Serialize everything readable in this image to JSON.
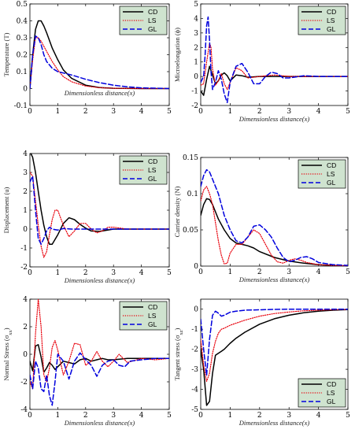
{
  "colors": {
    "CD": "#000000",
    "LS": "#e8000b",
    "GL": "#0000dd",
    "legend_bg": "#cfe3cf"
  },
  "chart_data": [
    {
      "type": "line",
      "xlabel": "Dimensionless distance(x)",
      "ylabel": "Temperature (T)",
      "xlim": [
        0,
        5
      ],
      "ylim": [
        -0.1,
        0.5
      ],
      "xticks": [
        "0",
        "1",
        "2",
        "3",
        "4",
        "5"
      ],
      "yticks": [
        "-0.1",
        "0",
        "0.1",
        "0.2",
        "0.3",
        "0.4",
        "0.5"
      ],
      "legend_position": "top-right",
      "series": [
        {
          "name": "CD",
          "x": [
            0,
            0.1,
            0.2,
            0.3,
            0.4,
            0.5,
            0.6,
            0.8,
            1.0,
            1.2,
            1.5,
            2.0,
            2.5,
            3.0,
            4.0,
            5.0
          ],
          "y": [
            0,
            0.2,
            0.35,
            0.4,
            0.4,
            0.37,
            0.33,
            0.24,
            0.17,
            0.11,
            0.06,
            0.02,
            0.006,
            0.002,
            0,
            0
          ]
        },
        {
          "name": "LS",
          "x": [
            0,
            0.1,
            0.2,
            0.3,
            0.4,
            0.5,
            0.6,
            0.8,
            1.0,
            1.2,
            1.5,
            2.0,
            2.5,
            3.0,
            4.0,
            5.0
          ],
          "y": [
            0,
            0.17,
            0.3,
            0.3,
            0.28,
            0.25,
            0.22,
            0.16,
            0.11,
            0.07,
            0.04,
            0.015,
            0.005,
            0.002,
            0,
            0
          ]
        },
        {
          "name": "GL",
          "x": [
            0,
            0.1,
            0.2,
            0.3,
            0.4,
            0.5,
            0.6,
            0.8,
            1.0,
            1.5,
            2.0,
            2.5,
            3.0,
            3.5,
            4.0,
            5.0
          ],
          "y": [
            0,
            0.2,
            0.31,
            0.3,
            0.26,
            0.2,
            0.16,
            0.12,
            0.1,
            0.08,
            0.055,
            0.035,
            0.02,
            0.01,
            0.004,
            0
          ]
        }
      ]
    },
    {
      "type": "line",
      "xlabel": "Dimensionless distance(x)",
      "ylabel": "Microelongation (ϕ)",
      "xlim": [
        0,
        5
      ],
      "ylim": [
        -2,
        5
      ],
      "xticks": [
        "0",
        "1",
        "2",
        "3",
        "4",
        "5"
      ],
      "yticks": [
        "-2",
        "-1",
        "0",
        "1",
        "2",
        "3",
        "4",
        "5"
      ],
      "legend_position": "top-right",
      "series": [
        {
          "name": "CD",
          "x": [
            0,
            0.1,
            0.2,
            0.3,
            0.4,
            0.5,
            0.6,
            0.7,
            0.8,
            0.9,
            1.0,
            1.2,
            1.4,
            1.6,
            2.0,
            3.0,
            4.0,
            5.0
          ],
          "y": [
            -1.0,
            -1.3,
            -0.2,
            0.7,
            0.1,
            -0.5,
            -0.3,
            0.1,
            0.25,
            0.05,
            -0.3,
            0.1,
            0.05,
            -0.05,
            0,
            0,
            0,
            0
          ]
        },
        {
          "name": "LS",
          "x": [
            0,
            0.1,
            0.2,
            0.3,
            0.35,
            0.4,
            0.5,
            0.6,
            0.7,
            0.8,
            0.9,
            1.0,
            1.2,
            1.4,
            1.6,
            2.0,
            2.5,
            3.0,
            4.0,
            5.0
          ],
          "y": [
            -0.6,
            -0.5,
            1.0,
            2.3,
            2.0,
            0.5,
            -0.6,
            -0.3,
            0.2,
            -0.5,
            -0.9,
            -0.4,
            0.6,
            0.4,
            -0.1,
            0,
            0.1,
            0,
            0,
            0
          ]
        },
        {
          "name": "GL",
          "x": [
            0,
            0.1,
            0.15,
            0.2,
            0.25,
            0.3,
            0.35,
            0.4,
            0.5,
            0.6,
            0.7,
            0.8,
            0.9,
            1.0,
            1.2,
            1.4,
            1.6,
            1.8,
            2.0,
            2.2,
            2.4,
            2.6,
            2.8,
            3.0,
            3.5,
            4.0,
            5.0
          ],
          "y": [
            -0.4,
            0.0,
            1.5,
            3.5,
            4.1,
            2.5,
            0.3,
            -0.9,
            -0.4,
            0.4,
            -0.2,
            -1.2,
            -1.8,
            -0.4,
            0.7,
            0.9,
            0.3,
            -0.5,
            -0.5,
            0,
            0.3,
            0.2,
            -0.1,
            -0.1,
            0.05,
            0,
            0
          ]
        }
      ]
    },
    {
      "type": "line",
      "xlabel": "Dimensionless distance(x)",
      "ylabel": "Displacement (u)",
      "xlim": [
        0,
        5
      ],
      "ylim": [
        -2,
        4
      ],
      "xticks": [
        "0",
        "1",
        "2",
        "3",
        "4",
        "5"
      ],
      "yticks": [
        "-2",
        "-1",
        "0",
        "1",
        "2",
        "3",
        "4"
      ],
      "legend_position": "top-right",
      "series": [
        {
          "name": "CD",
          "x": [
            0,
            0.1,
            0.2,
            0.3,
            0.4,
            0.5,
            0.6,
            0.7,
            0.8,
            1.0,
            1.2,
            1.4,
            1.6,
            1.8,
            2.0,
            2.2,
            2.5,
            3.0,
            3.5,
            4.0,
            5.0
          ],
          "y": [
            4.1,
            3.8,
            3.0,
            2.0,
            1.0,
            0.2,
            -0.4,
            -0.8,
            -0.8,
            -0.3,
            0.3,
            0.6,
            0.5,
            0.25,
            0.05,
            -0.1,
            -0.12,
            0,
            0,
            0,
            0
          ]
        },
        {
          "name": "LS",
          "x": [
            0,
            0.1,
            0.2,
            0.3,
            0.4,
            0.5,
            0.6,
            0.7,
            0.8,
            0.9,
            1.0,
            1.1,
            1.2,
            1.4,
            1.6,
            1.8,
            2.0,
            2.2,
            2.4,
            2.6,
            2.8,
            3.0,
            3.5,
            4.0,
            5.0
          ],
          "y": [
            3.0,
            2.8,
            1.5,
            0.2,
            -0.9,
            -1.5,
            -1.2,
            -0.3,
            0.5,
            1.0,
            1.0,
            0.6,
            0.2,
            -0.4,
            -0.1,
            0.3,
            0.3,
            0,
            -0.2,
            -0.1,
            0.1,
            0.1,
            0,
            0,
            0
          ]
        },
        {
          "name": "GL",
          "x": [
            0,
            0.1,
            0.2,
            0.3,
            0.4,
            0.5,
            0.6,
            0.7,
            0.8,
            1.0,
            1.2,
            1.5,
            2.0,
            3.0,
            4.0,
            5.0
          ],
          "y": [
            2.5,
            2.8,
            1.0,
            -0.5,
            -0.8,
            -0.5,
            -0.1,
            0.1,
            0.0,
            -0.05,
            0.03,
            0,
            0,
            0,
            0,
            0
          ]
        }
      ]
    },
    {
      "type": "line",
      "xlabel": "Dimensionless distance(x)",
      "ylabel": "Carrier density (N)",
      "xlim": [
        0,
        5
      ],
      "ylim": [
        0,
        0.15
      ],
      "xticks": [
        "0",
        "1",
        "2",
        "3",
        "4",
        "5"
      ],
      "yticks": [
        "0",
        "0.05",
        "0.1",
        "0.15"
      ],
      "legend_position": "top-right",
      "series": [
        {
          "name": "CD",
          "x": [
            0,
            0.1,
            0.2,
            0.3,
            0.4,
            0.5,
            0.6,
            0.8,
            1.0,
            1.2,
            1.4,
            1.6,
            1.8,
            2.0,
            2.5,
            3.0,
            3.5,
            4.0,
            4.5,
            5.0
          ],
          "y": [
            0.07,
            0.085,
            0.093,
            0.092,
            0.085,
            0.075,
            0.065,
            0.05,
            0.038,
            0.032,
            0.03,
            0.028,
            0.025,
            0.02,
            0.012,
            0.007,
            0.004,
            0.002,
            0.001,
            0
          ]
        },
        {
          "name": "LS",
          "x": [
            0,
            0.1,
            0.2,
            0.3,
            0.4,
            0.5,
            0.6,
            0.7,
            0.8,
            0.9,
            1.0,
            1.2,
            1.4,
            1.6,
            1.8,
            2.0,
            2.2,
            2.4,
            2.6,
            2.8,
            3.0,
            3.2,
            3.4,
            3.6,
            4.0,
            5.0
          ],
          "y": [
            0.09,
            0.105,
            0.11,
            0.1,
            0.085,
            0.06,
            0.035,
            0.015,
            0.003,
            0.004,
            0.018,
            0.03,
            0.03,
            0.04,
            0.05,
            0.045,
            0.03,
            0.015,
            0.006,
            0.004,
            0.008,
            0.01,
            0.008,
            0.005,
            0.002,
            0
          ]
        },
        {
          "name": "GL",
          "x": [
            0,
            0.1,
            0.2,
            0.3,
            0.4,
            0.5,
            0.6,
            0.8,
            1.0,
            1.2,
            1.4,
            1.6,
            1.8,
            2.0,
            2.2,
            2.4,
            2.6,
            2.8,
            3.0,
            3.2,
            3.4,
            3.6,
            3.8,
            4.0,
            4.5,
            5.0
          ],
          "y": [
            0.11,
            0.125,
            0.133,
            0.13,
            0.12,
            0.11,
            0.1,
            0.07,
            0.05,
            0.035,
            0.032,
            0.04,
            0.055,
            0.057,
            0.05,
            0.04,
            0.025,
            0.012,
            0.006,
            0.008,
            0.012,
            0.013,
            0.01,
            0.005,
            0.002,
            0.001
          ]
        }
      ]
    },
    {
      "type": "line",
      "xlabel": "Dimensionless distance(x)",
      "ylabel": "Normal Stress (σ_xx)",
      "xlim": [
        0,
        5
      ],
      "ylim": [
        -4,
        4
      ],
      "xticks": [
        "0",
        "1",
        "2",
        "3",
        "4",
        "5"
      ],
      "yticks": [
        "-4",
        "-2",
        "0",
        "2",
        "4"
      ],
      "legend_position": "top-right",
      "series": [
        {
          "name": "CD",
          "x": [
            0,
            0.1,
            0.2,
            0.3,
            0.4,
            0.5,
            0.6,
            0.7,
            0.8,
            0.9,
            1.0,
            1.2,
            1.4,
            1.6,
            1.8,
            2.0,
            2.2,
            2.4,
            2.6,
            2.8,
            3.0,
            3.5,
            4.0,
            4.5,
            5.0
          ],
          "y": [
            -0.5,
            -1.2,
            0.6,
            0.7,
            -0.2,
            -1.3,
            -1.0,
            -0.6,
            -0.8,
            -1.1,
            -0.9,
            -0.5,
            -0.6,
            -0.7,
            -0.4,
            -0.3,
            -0.5,
            -0.4,
            -0.3,
            -0.4,
            -0.4,
            -0.3,
            -0.3,
            -0.3,
            -0.3
          ]
        },
        {
          "name": "LS",
          "x": [
            0,
            0.1,
            0.2,
            0.3,
            0.4,
            0.5,
            0.6,
            0.7,
            0.8,
            0.9,
            1.0,
            1.2,
            1.4,
            1.6,
            1.8,
            2.0,
            2.2,
            2.4,
            2.6,
            2.8,
            3.0,
            3.2,
            3.5,
            4.0,
            4.5,
            5.0
          ],
          "y": [
            -2.0,
            -2.5,
            1.5,
            4.0,
            2.0,
            -1.5,
            -2.0,
            -1.0,
            0.5,
            1.0,
            0.3,
            -1.5,
            -0.5,
            0.8,
            0.7,
            -0.8,
            -0.5,
            0.2,
            -0.5,
            -0.9,
            -0.5,
            0,
            -0.6,
            -0.3,
            -0.4,
            -0.3
          ]
        },
        {
          "name": "GL",
          "x": [
            0,
            0.1,
            0.2,
            0.3,
            0.4,
            0.5,
            0.6,
            0.7,
            0.8,
            0.9,
            1.0,
            1.2,
            1.4,
            1.6,
            1.8,
            2.0,
            2.2,
            2.4,
            2.6,
            2.8,
            3.0,
            3.2,
            3.4,
            3.6,
            4.0,
            4.5,
            5.0
          ],
          "y": [
            -1.5,
            -2.5,
            -0.5,
            -1.0,
            -2.5,
            -2.7,
            -1.5,
            -3.0,
            -3.7,
            -2.0,
            0.0,
            -0.5,
            -1.8,
            -0.5,
            0.1,
            -0.4,
            -0.8,
            -1.6,
            -0.8,
            -0.5,
            -0.4,
            -0.8,
            -0.9,
            -0.5,
            -0.4,
            -0.3,
            -0.3
          ]
        }
      ]
    },
    {
      "type": "line",
      "xlabel": "Dimensionless distance(x)",
      "ylabel": "Tangent stress (σ_xz)",
      "xlim": [
        0,
        5
      ],
      "ylim": [
        -5,
        0.5
      ],
      "xticks": [
        "0",
        "1",
        "2",
        "3",
        "4",
        "5"
      ],
      "yticks": [
        "-5",
        "-4",
        "-3",
        "-2",
        "-1",
        "0"
      ],
      "legend_position": "bottom-right",
      "series": [
        {
          "name": "CD",
          "x": [
            0,
            0.1,
            0.2,
            0.3,
            0.4,
            0.5,
            0.6,
            0.7,
            0.8,
            1.0,
            1.2,
            1.5,
            2.0,
            2.5,
            3.0,
            3.5,
            4.0,
            4.5,
            5.0
          ],
          "y": [
            -2.0,
            -3.0,
            -4.8,
            -4.6,
            -3.2,
            -2.3,
            -2.2,
            -2.1,
            -2.0,
            -1.7,
            -1.45,
            -1.15,
            -0.75,
            -0.48,
            -0.3,
            -0.18,
            -0.1,
            -0.05,
            -0.02
          ]
        },
        {
          "name": "LS",
          "x": [
            0,
            0.1,
            0.2,
            0.3,
            0.4,
            0.5,
            0.6,
            0.7,
            0.8,
            1.0,
            1.2,
            1.5,
            2.0,
            2.5,
            3.0,
            3.5,
            4.0,
            4.5,
            5.0
          ],
          "y": [
            -1.5,
            -2.8,
            -3.6,
            -3.2,
            -2.2,
            -1.6,
            -1.2,
            -1.0,
            -0.95,
            -0.8,
            -0.7,
            -0.55,
            -0.35,
            -0.22,
            -0.14,
            -0.08,
            -0.05,
            -0.03,
            -0.01
          ]
        },
        {
          "name": "GL",
          "x": [
            0,
            0.1,
            0.2,
            0.3,
            0.4,
            0.5,
            0.6,
            0.7,
            0.8,
            1.0,
            1.2,
            1.5,
            2.0,
            2.5,
            3.0,
            3.5,
            4.0,
            4.5,
            5.0
          ],
          "y": [
            -0.5,
            -2.0,
            -3.3,
            -1.5,
            -0.3,
            -0.1,
            -0.2,
            -0.35,
            -0.3,
            -0.15,
            -0.1,
            -0.05,
            -0.03,
            -0.01,
            0,
            0,
            0,
            0,
            0
          ]
        }
      ]
    }
  ]
}
